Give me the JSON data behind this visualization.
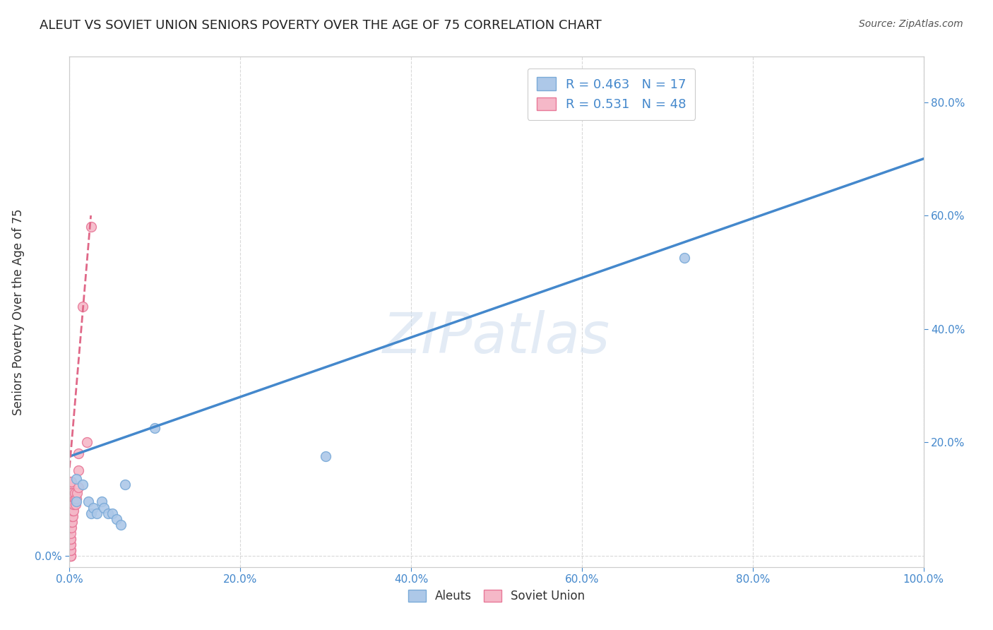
{
  "title": "ALEUT VS SOVIET UNION SENIORS POVERTY OVER THE AGE OF 75 CORRELATION CHART",
  "source": "Source: ZipAtlas.com",
  "ylabel": "Seniors Poverty Over the Age of 75",
  "background_color": "#ffffff",
  "grid_color": "#d0d0d0",
  "watermark": "ZIPatlas",
  "aleuts_color": "#adc8e8",
  "aleuts_edge_color": "#7aaad8",
  "soviet_color": "#f5b8c8",
  "soviet_edge_color": "#e87898",
  "blue_line_color": "#4488cc",
  "pink_line_color": "#e06888",
  "legend_R1": "R = 0.463",
  "legend_N1": "N = 17",
  "legend_R2": "R = 0.531",
  "legend_N2": "N = 48",
  "aleuts_x": [
    0.008,
    0.008,
    0.015,
    0.022,
    0.025,
    0.028,
    0.032,
    0.038,
    0.04,
    0.045,
    0.05,
    0.055,
    0.06,
    0.065,
    0.1,
    0.3,
    0.72
  ],
  "aleuts_y": [
    0.135,
    0.095,
    0.125,
    0.095,
    0.075,
    0.085,
    0.075,
    0.095,
    0.085,
    0.075,
    0.075,
    0.065,
    0.055,
    0.125,
    0.225,
    0.175,
    0.525
  ],
  "soviet_x": [
    0.001,
    0.001,
    0.001,
    0.001,
    0.001,
    0.001,
    0.001,
    0.001,
    0.001,
    0.001,
    0.001,
    0.001,
    0.001,
    0.001,
    0.001,
    0.001,
    0.001,
    0.001,
    0.001,
    0.001,
    0.002,
    0.002,
    0.002,
    0.002,
    0.002,
    0.002,
    0.002,
    0.003,
    0.003,
    0.003,
    0.003,
    0.003,
    0.004,
    0.004,
    0.004,
    0.005,
    0.005,
    0.006,
    0.006,
    0.007,
    0.008,
    0.009,
    0.01,
    0.01,
    0.01,
    0.015,
    0.02,
    0.025
  ],
  "soviet_y": [
    0.0,
    0.0,
    0.0,
    0.0,
    0.01,
    0.01,
    0.02,
    0.02,
    0.03,
    0.03,
    0.04,
    0.05,
    0.06,
    0.07,
    0.08,
    0.09,
    0.1,
    0.11,
    0.12,
    0.13,
    0.05,
    0.06,
    0.07,
    0.09,
    0.1,
    0.11,
    0.13,
    0.06,
    0.07,
    0.08,
    0.09,
    0.11,
    0.07,
    0.08,
    0.09,
    0.08,
    0.09,
    0.1,
    0.11,
    0.09,
    0.1,
    0.11,
    0.12,
    0.15,
    0.18,
    0.44,
    0.2,
    0.58
  ],
  "blue_line_x": [
    0.0,
    1.0
  ],
  "blue_line_y": [
    0.175,
    0.7
  ],
  "pink_line_x": [
    0.0,
    0.025
  ],
  "pink_line_y": [
    0.155,
    0.6
  ],
  "xlim": [
    0.0,
    1.0
  ],
  "ylim": [
    -0.02,
    0.88
  ],
  "xticks": [
    0.0,
    0.2,
    0.4,
    0.6,
    0.8,
    1.0
  ],
  "xtick_labels": [
    "0.0%",
    "20.0%",
    "40.0%",
    "60.0%",
    "80.0%",
    "100.0%"
  ],
  "left_ytick": 0.0,
  "left_ytick_label": "0.0%",
  "right_yticks": [
    0.2,
    0.4,
    0.6,
    0.8
  ],
  "right_ytick_labels": [
    "20.0%",
    "40.0%",
    "60.0%",
    "80.0%"
  ],
  "marker_size": 100,
  "title_color": "#222222",
  "tick_color": "#4488cc",
  "title_fontsize": 13,
  "source_fontsize": 10,
  "axis_label_fontsize": 12,
  "tick_fontsize": 11,
  "legend_fontsize": 13
}
